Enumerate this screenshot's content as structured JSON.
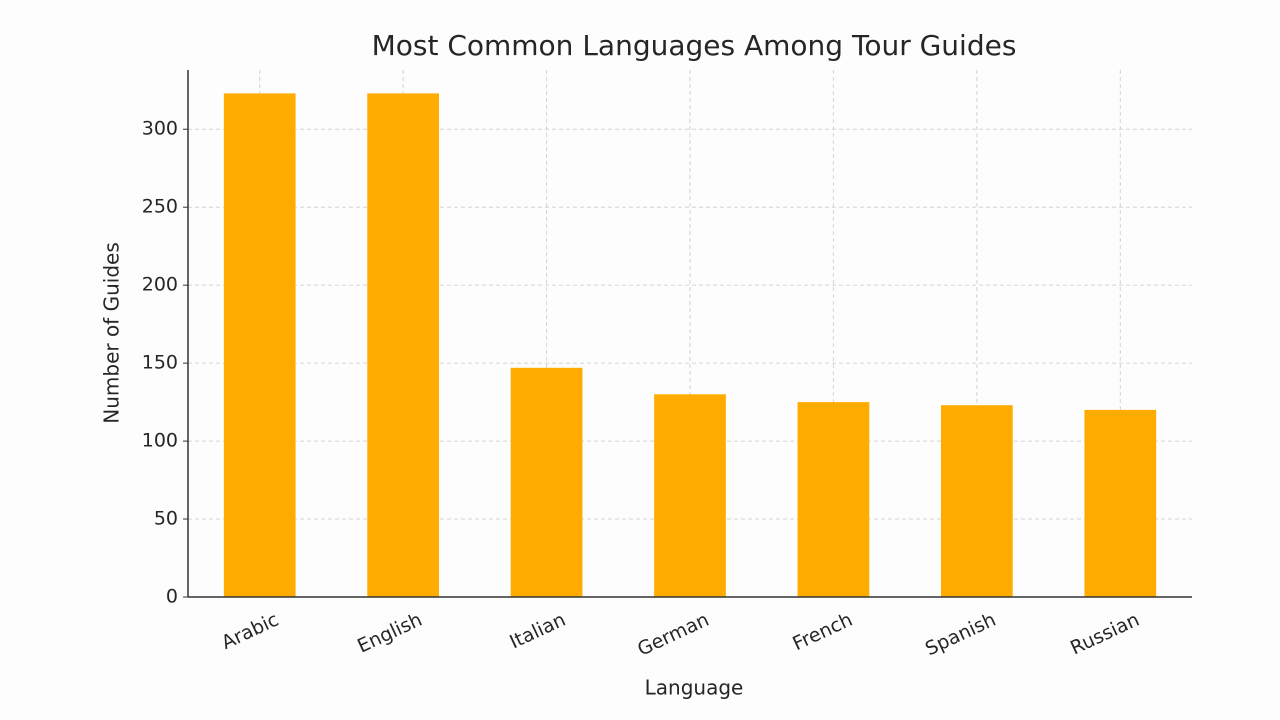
{
  "chart_data": {
    "type": "bar",
    "title": "Most Common Languages Among Tour Guides",
    "x_label": "Language",
    "y_label": "Number of Guides",
    "categories": [
      "Arabic",
      "English",
      "Italian",
      "German",
      "French",
      "Spanish",
      "Russian"
    ],
    "values": [
      323,
      323,
      147,
      130,
      125,
      123,
      120
    ],
    "color": "#ffab00",
    "ylim": [
      0,
      338
    ],
    "yticks": [
      0,
      50,
      100,
      150,
      200,
      250,
      300
    ],
    "grid": true
  }
}
